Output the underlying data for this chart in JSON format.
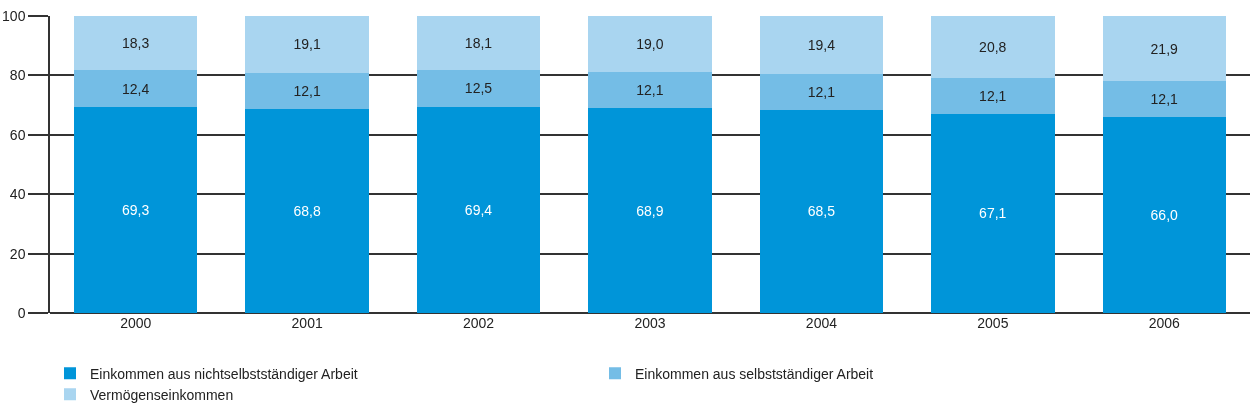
{
  "chart_data": {
    "type": "bar",
    "stacked": true,
    "categories": [
      "2000",
      "2001",
      "2002",
      "2003",
      "2004",
      "2005",
      "2006"
    ],
    "series": [
      {
        "name": "Einkommen aus nichtselbstständiger Arbeit",
        "color": "#0095d9",
        "values": [
          69.3,
          68.8,
          69.4,
          68.9,
          68.5,
          67.1,
          66.0
        ],
        "value_labels": [
          "69,3",
          "68,8",
          "69,4",
          "68,9",
          "68,5",
          "67,1",
          "66,0"
        ]
      },
      {
        "name": "Einkommen aus selbstständiger Arbeit",
        "color": "#74bde6",
        "values": [
          12.4,
          12.1,
          12.5,
          12.1,
          12.1,
          12.1,
          12.1
        ],
        "value_labels": [
          "12,4",
          "12,1",
          "12,5",
          "12,1",
          "12,1",
          "12,1",
          "12,1"
        ]
      },
      {
        "name": "Vermögenseinkommen",
        "color": "#a9d5f0",
        "values": [
          18.3,
          19.1,
          18.1,
          19.0,
          19.4,
          20.8,
          21.9
        ],
        "value_labels": [
          "18,3",
          "19,1",
          "18,1",
          "19,0",
          "19,4",
          "20,8",
          "21,9"
        ]
      }
    ],
    "ylim": [
      0,
      100
    ],
    "yticks": [
      0,
      20,
      40,
      60,
      80,
      100
    ],
    "grid": "y",
    "legend": "bottom"
  }
}
